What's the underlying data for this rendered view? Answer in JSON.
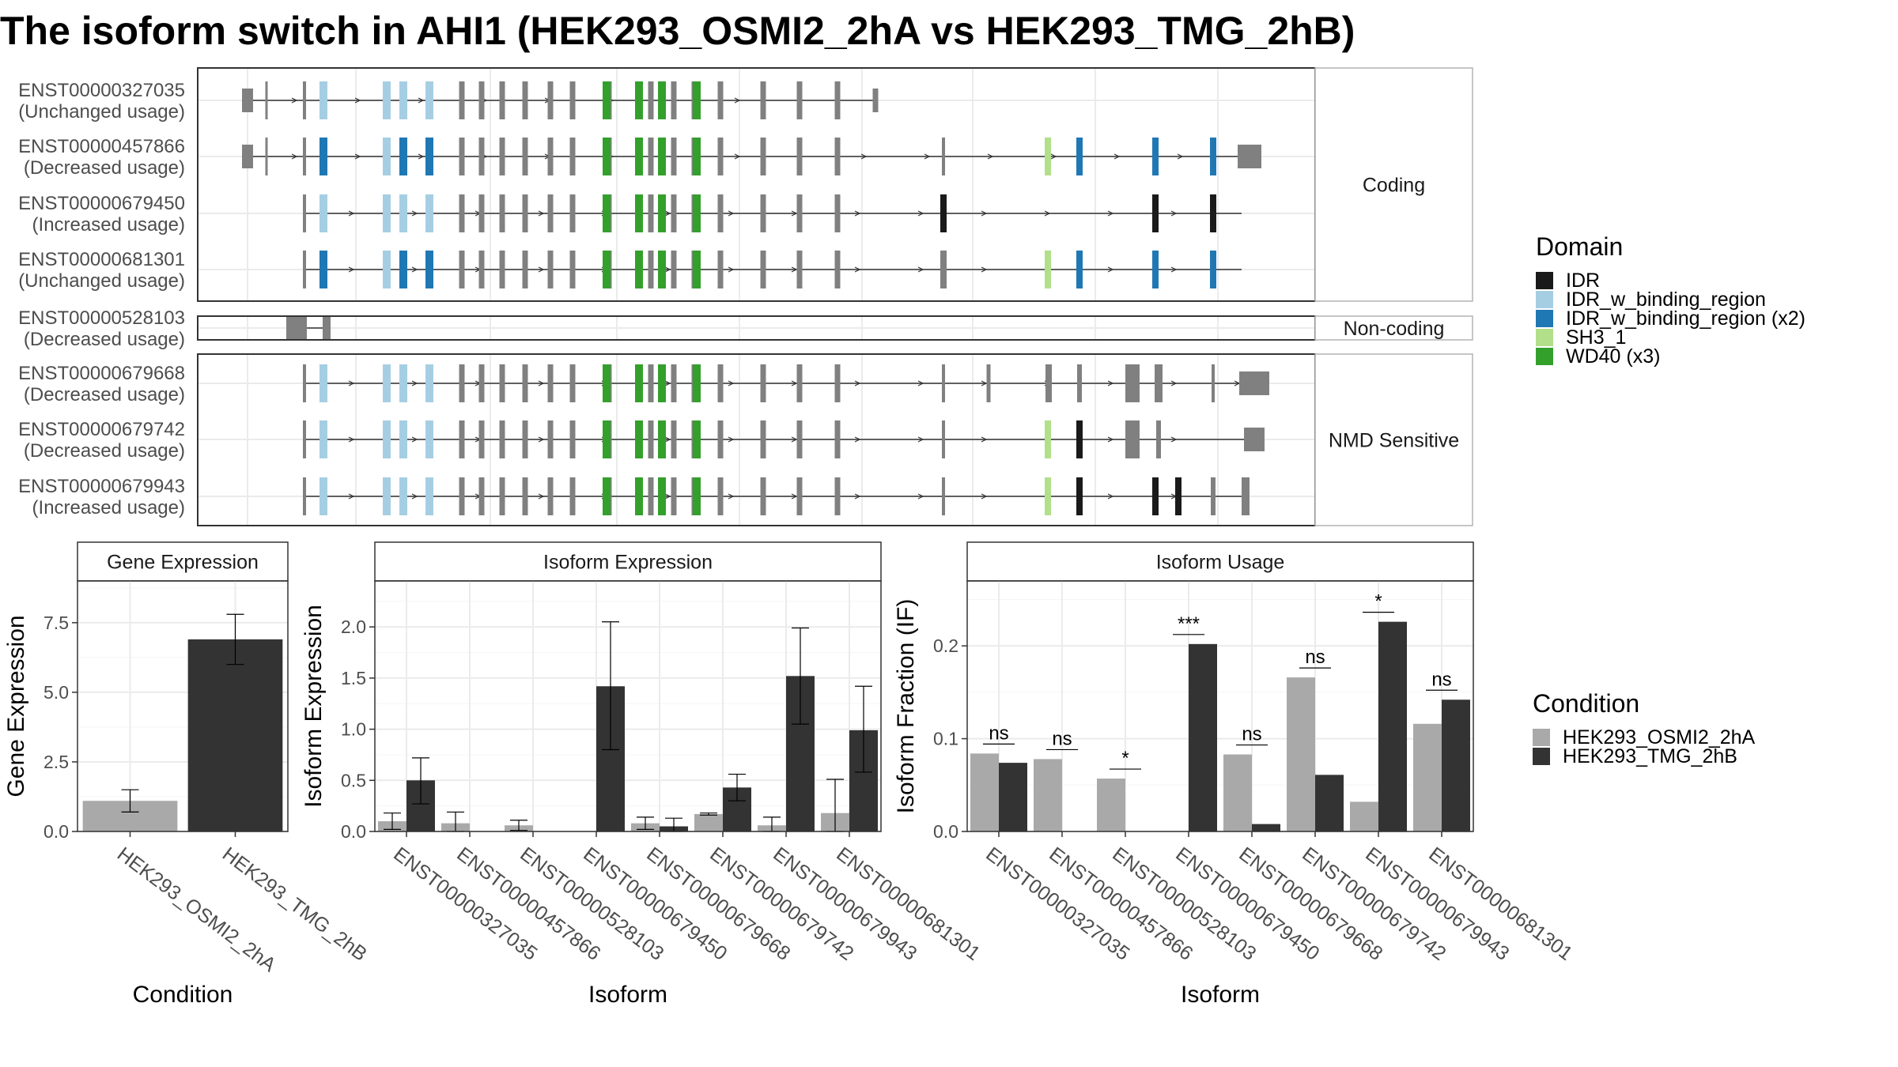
{
  "title": "The isoform switch in AHI1 (HEK293_OSMI2_2hA vs HEK293_TMG_2hB)",
  "colors": {
    "IDR": "#1a1a1a",
    "IDR_w_binding_region": "#a6cee3",
    "IDR_w_binding_region (x2)": "#1f78b4",
    "SH3_1": "#b2df8a",
    "WD40 (x3)": "#33a02c",
    "exon": "#808080",
    "cond_a": "#a9a9a9",
    "cond_b": "#333333"
  },
  "transcripts": {
    "panels": [
      {
        "label": "Coding",
        "rows": [
          {
            "id": "ENST00000327035",
            "usage": "(Unchanged usage)",
            "key": "t327035"
          },
          {
            "id": "ENST00000457866",
            "usage": "(Decreased usage)",
            "key": "t457866"
          },
          {
            "id": "ENST00000679450",
            "usage": "(Increased usage)",
            "key": "t679450"
          },
          {
            "id": "ENST00000681301",
            "usage": "(Unchanged usage)",
            "key": "t681301"
          }
        ]
      },
      {
        "label": "Non-coding",
        "rows": [
          {
            "id": "ENST00000528103",
            "usage": "(Decreased usage)",
            "key": "t528103"
          }
        ]
      },
      {
        "label": "NMD Sensitive",
        "rows": [
          {
            "id": "ENST00000679668",
            "usage": "(Decreased usage)",
            "key": "t679668"
          },
          {
            "id": "ENST00000679742",
            "usage": "(Decreased usage)",
            "key": "t679742"
          },
          {
            "id": "ENST00000679943",
            "usage": "(Increased usage)",
            "key": "t679943"
          }
        ]
      }
    ]
  },
  "legend_domain": {
    "title": "Domain",
    "items": [
      "IDR",
      "IDR_w_binding_region",
      "IDR_w_binding_region (x2)",
      "SH3_1",
      "WD40 (x3)"
    ]
  },
  "legend_condition": {
    "title": "Condition",
    "items": [
      "HEK293_OSMI2_2hA",
      "HEK293_TMG_2hB"
    ]
  },
  "chart_data": [
    {
      "type": "bar",
      "title": "Gene Expression",
      "xlabel": "Condition",
      "ylabel": "Gene Expression",
      "ylim": [
        0,
        9
      ],
      "yticks": [
        "0.0",
        "2.5",
        "5.0",
        "7.5"
      ],
      "categories": [
        "HEK293_OSMI2_2hA",
        "HEK293_TMG_2hB"
      ],
      "values": [
        1.1,
        6.9
      ],
      "errors": [
        [
          0.7,
          1.5
        ],
        [
          6.0,
          7.8
        ]
      ]
    },
    {
      "type": "bar",
      "title": "Isoform Expression",
      "xlabel": "Isoform",
      "ylabel": "Isoform Expression",
      "ylim": [
        0,
        2.45
      ],
      "yticks": [
        "0.0",
        "0.5",
        "1.0",
        "1.5",
        "2.0"
      ],
      "categories": [
        "ENST00000327035",
        "ENST00000457866",
        "ENST00000528103",
        "ENST00000679450",
        "ENST00000679668",
        "ENST00000679742",
        "ENST00000679943",
        "ENST00000681301"
      ],
      "series": [
        {
          "name": "HEK293_OSMI2_2hA",
          "values": [
            0.1,
            0.08,
            0.06,
            0.0,
            0.08,
            0.17,
            0.06,
            0.18
          ],
          "errors": [
            [
              0.02,
              0.18
            ],
            [
              0.0,
              0.19
            ],
            [
              0.01,
              0.11
            ],
            [
              0.0,
              0.0
            ],
            [
              0.02,
              0.14
            ],
            [
              0.16,
              0.18
            ],
            [
              0.0,
              0.14
            ],
            [
              0.0,
              0.51
            ]
          ]
        },
        {
          "name": "HEK293_TMG_2hB",
          "values": [
            0.5,
            0.0,
            0.0,
            1.42,
            0.05,
            0.43,
            1.52,
            0.99
          ],
          "errors": [
            [
              0.27,
              0.72
            ],
            [
              0.0,
              0.0
            ],
            [
              0.0,
              0.0
            ],
            [
              0.8,
              2.05
            ],
            [
              0.0,
              0.13
            ],
            [
              0.3,
              0.56
            ],
            [
              1.05,
              1.99
            ],
            [
              0.58,
              1.42
            ]
          ]
        }
      ]
    },
    {
      "type": "bar",
      "title": "Isoform Usage",
      "xlabel": "Isoform",
      "ylabel": "Isoform Fraction (IF)",
      "ylim": [
        0,
        0.27
      ],
      "yticks": [
        "0.0",
        "0.1",
        "0.2"
      ],
      "categories": [
        "ENST00000327035",
        "ENST00000457866",
        "ENST00000528103",
        "ENST00000679450",
        "ENST00000679668",
        "ENST00000679742",
        "ENST00000679943",
        "ENST00000681301"
      ],
      "series": [
        {
          "name": "HEK293_OSMI2_2hA",
          "values": [
            0.084,
            0.078,
            0.057,
            0.0,
            0.083,
            0.166,
            0.032,
            0.116
          ]
        },
        {
          "name": "HEK293_TMG_2hB",
          "values": [
            0.074,
            0.0,
            0.0,
            0.202,
            0.008,
            0.061,
            0.226,
            0.142
          ]
        }
      ],
      "significance": [
        "ns",
        "ns",
        "*",
        "***",
        "ns",
        "ns",
        "*",
        "ns"
      ]
    }
  ]
}
